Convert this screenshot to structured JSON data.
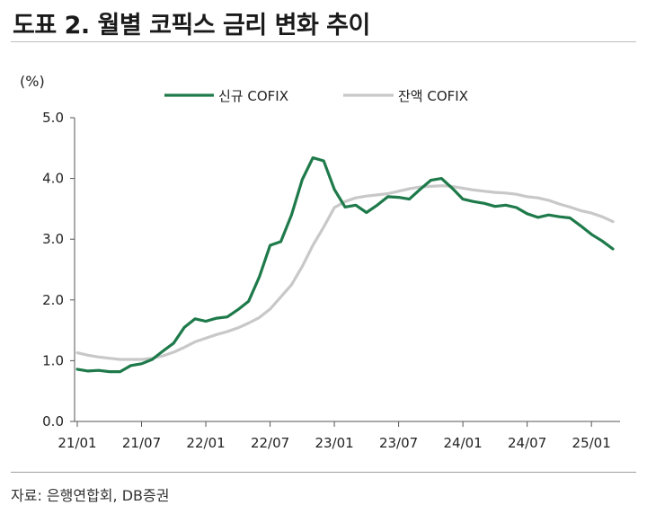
{
  "page": {
    "title": "도표 2. 월별 코픽스 금리 변화 추이",
    "source": "자료: 은행연합회, DB증권"
  },
  "chart_data": {
    "type": "line",
    "ylabel": "(%)",
    "ylim": [
      0,
      5
    ],
    "yticks": [
      "0.0",
      "1.0",
      "2.0",
      "3.0",
      "4.0",
      "5.0"
    ],
    "xtick_labels": [
      "21/01",
      "21/07",
      "22/01",
      "22/07",
      "23/01",
      "23/07",
      "24/01",
      "24/07",
      "25/01"
    ],
    "legend_position": "top-center",
    "grid": false,
    "x": [
      "21/01",
      "21/02",
      "21/03",
      "21/04",
      "21/05",
      "21/06",
      "21/07",
      "21/08",
      "21/09",
      "21/10",
      "21/11",
      "21/12",
      "22/01",
      "22/02",
      "22/03",
      "22/04",
      "22/05",
      "22/06",
      "22/07",
      "22/08",
      "22/09",
      "22/10",
      "22/11",
      "22/12",
      "23/01",
      "23/02",
      "23/03",
      "23/04",
      "23/05",
      "23/06",
      "23/07",
      "23/08",
      "23/09",
      "23/10",
      "23/11",
      "23/12",
      "24/01",
      "24/02",
      "24/03",
      "24/04",
      "24/05",
      "24/06",
      "24/07",
      "24/08",
      "24/09",
      "24/10",
      "24/11",
      "24/12",
      "25/01",
      "25/02",
      "25/03"
    ],
    "series": [
      {
        "name": "신규 COFIX",
        "color": "#1e7a4a",
        "values": [
          0.86,
          0.83,
          0.84,
          0.82,
          0.82,
          0.92,
          0.95,
          1.02,
          1.16,
          1.29,
          1.55,
          1.69,
          1.65,
          1.7,
          1.72,
          1.84,
          1.98,
          2.38,
          2.9,
          2.96,
          3.4,
          3.98,
          4.34,
          4.29,
          3.82,
          3.53,
          3.56,
          3.44,
          3.56,
          3.7,
          3.69,
          3.66,
          3.82,
          3.97,
          4.0,
          3.84,
          3.66,
          3.62,
          3.59,
          3.54,
          3.56,
          3.52,
          3.42,
          3.36,
          3.4,
          3.37,
          3.35,
          3.22,
          3.08,
          2.97,
          2.84
        ]
      },
      {
        "name": "잔액 COFIX",
        "color": "#c8c8c8",
        "values": [
          1.13,
          1.09,
          1.06,
          1.04,
          1.02,
          1.02,
          1.02,
          1.04,
          1.08,
          1.14,
          1.22,
          1.31,
          1.37,
          1.43,
          1.48,
          1.54,
          1.62,
          1.71,
          1.85,
          2.05,
          2.25,
          2.55,
          2.9,
          3.2,
          3.52,
          3.62,
          3.68,
          3.71,
          3.73,
          3.75,
          3.79,
          3.83,
          3.86,
          3.87,
          3.88,
          3.87,
          3.84,
          3.81,
          3.79,
          3.77,
          3.76,
          3.74,
          3.7,
          3.68,
          3.64,
          3.58,
          3.53,
          3.47,
          3.43,
          3.37,
          3.29
        ]
      }
    ]
  }
}
